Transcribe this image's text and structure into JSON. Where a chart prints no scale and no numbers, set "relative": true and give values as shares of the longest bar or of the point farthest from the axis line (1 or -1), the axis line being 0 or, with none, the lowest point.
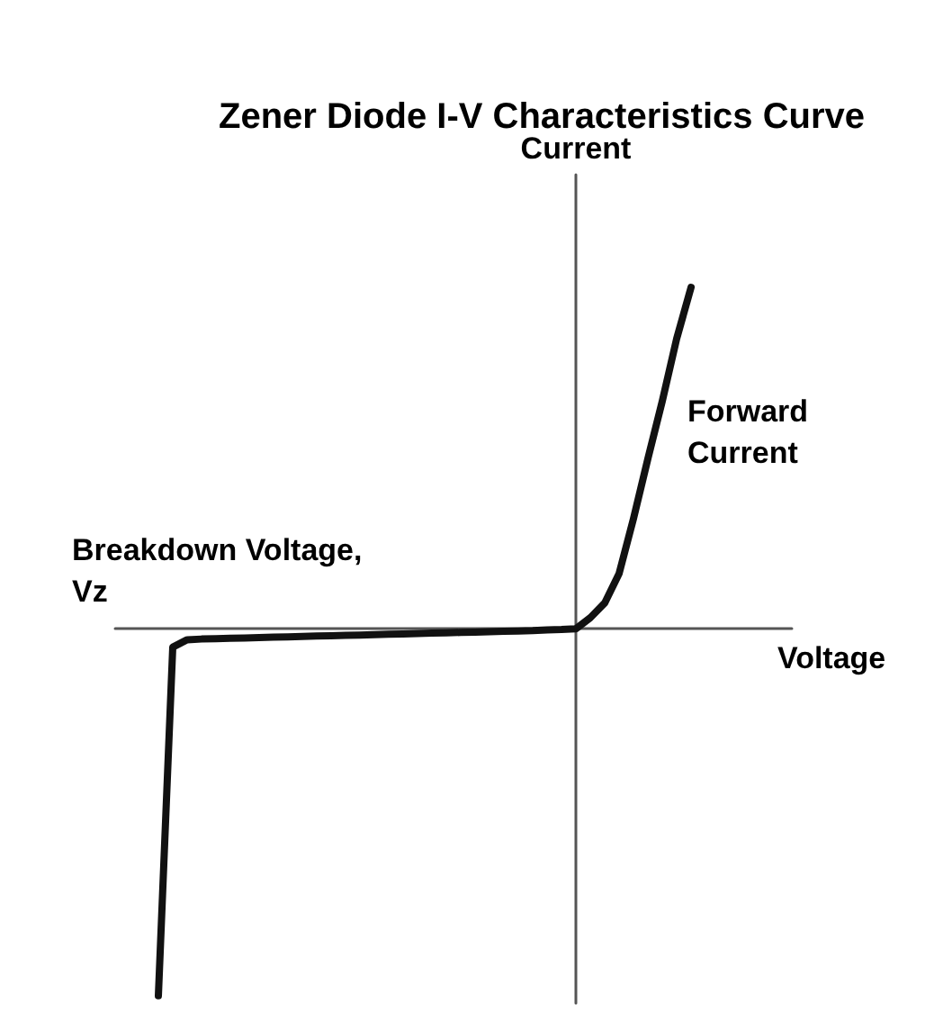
{
  "chart_data": {
    "type": "line",
    "title": "Zener Diode I-V Characteristics Curve",
    "xlabel": "Voltage",
    "ylabel": "Current",
    "relative": true,
    "marker": "none",
    "line_style": "solid",
    "grid": false,
    "categories": [
      null,
      null,
      null,
      null,
      null,
      null,
      null,
      null,
      null,
      null,
      null,
      null,
      null,
      null,
      null,
      null,
      null,
      null,
      null,
      null,
      null,
      null,
      null,
      null,
      null,
      null,
      null,
      null,
      null,
      null,
      null,
      null,
      null,
      null,
      null,
      null,
      null,
      null,
      null,
      null,
      null,
      null,
      null,
      null,
      null,
      null,
      null,
      null
    ],
    "series": [
      {
        "color": "#111111",
        "values": [
          null,
          null,
          null,
          -1.0,
          -0.05,
          -0.03,
          -0.028,
          -0.027,
          -0.026,
          -0.025,
          -0.024,
          -0.023,
          -0.022,
          -0.021,
          -0.02,
          -0.019,
          -0.018,
          -0.017,
          -0.016,
          -0.015,
          -0.014,
          -0.013,
          -0.012,
          -0.011,
          -0.01,
          -0.009,
          -0.008,
          -0.007,
          -0.006,
          -0.005,
          -0.003,
          -0.002,
          0.0,
          0.03,
          0.07,
          0.15,
          0.3,
          0.463,
          0.62,
          0.79,
          0.93,
          null,
          null,
          null,
          null,
          null,
          null,
          null
        ]
      }
    ],
    "annotations": [
      "Breakdown Voltage, Vz",
      "Forward Current"
    ]
  }
}
